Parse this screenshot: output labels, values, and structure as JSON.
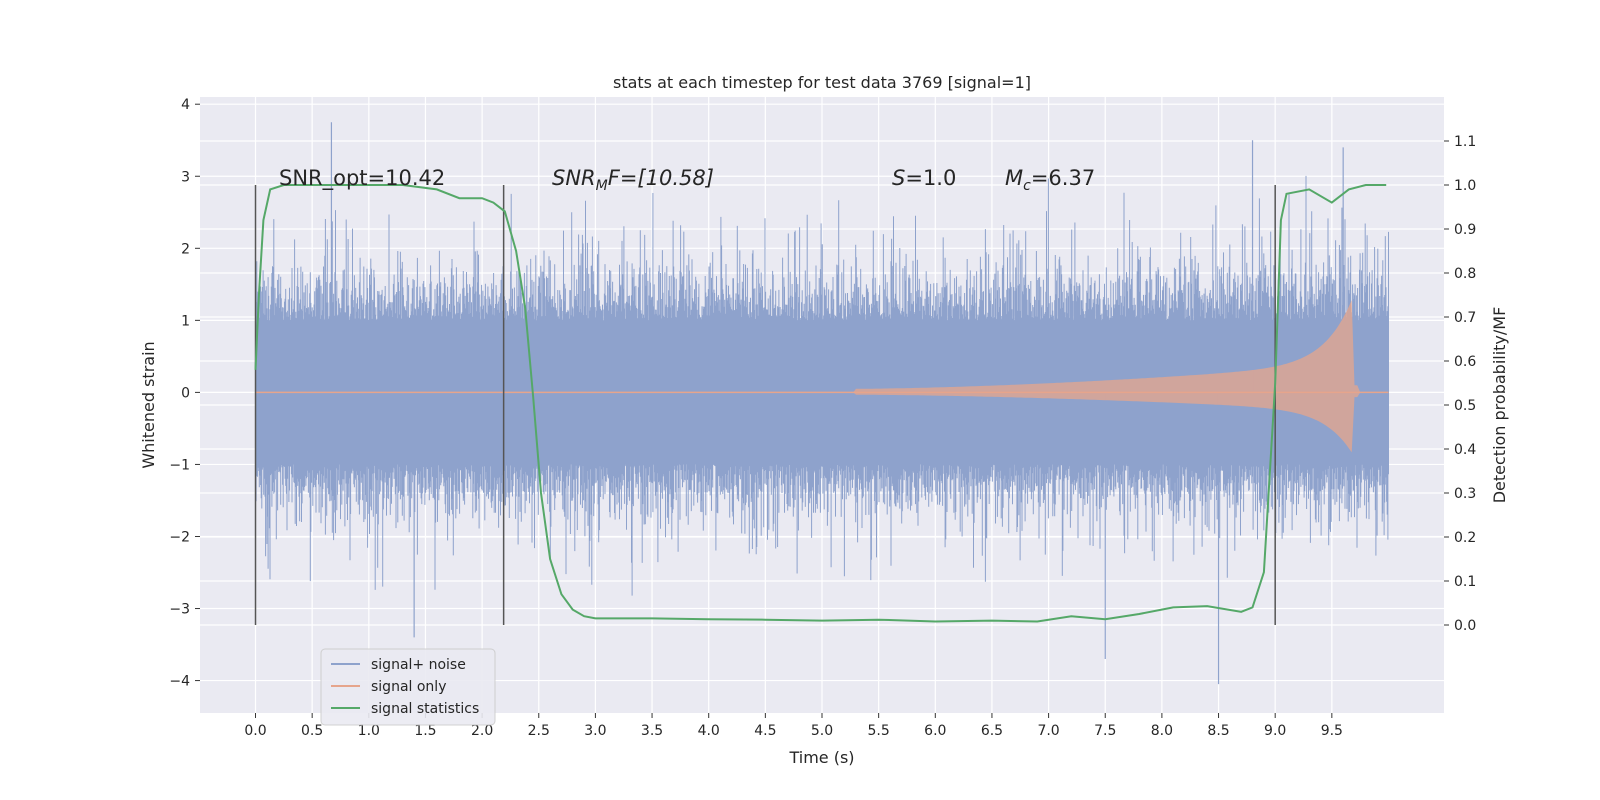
{
  "chart_data": {
    "type": "line",
    "title": "stats at each timestep for test data 3769 [signal=1]",
    "xlabel": "Time (s)",
    "ylabel": "Whitened strain",
    "y2label": "Detection probability/MF",
    "xlim": [
      -0.49,
      10.49
    ],
    "ylim": [
      -4.45,
      4.1
    ],
    "y2lim": [
      -0.2,
      1.2
    ],
    "grid": true,
    "legend_position": "lower-left",
    "x_ticks": [
      "0.0",
      "0.5",
      "1.0",
      "1.5",
      "2.0",
      "2.5",
      "3.0",
      "3.5",
      "4.0",
      "4.5",
      "5.0",
      "5.5",
      "6.0",
      "6.5",
      "7.0",
      "7.5",
      "8.0",
      "8.5",
      "9.0",
      "9.5"
    ],
    "y_ticks": [
      "4",
      "3",
      "2",
      "1",
      "0",
      "−1",
      "−2",
      "−3",
      "−4"
    ],
    "y2_ticks": [
      "1.1",
      "1.0",
      "0.9",
      "0.8",
      "0.7",
      "0.6",
      "0.5",
      "0.4",
      "0.3",
      "0.2",
      "0.1",
      "0.0"
    ],
    "annotations": {
      "snr_opt": "SNR_opt=10.42",
      "snr_mf_main": "SNR",
      "snr_mf_sub": "M",
      "snr_mf_rest": "F=[10.58]",
      "s_label": "S",
      "s_value": "=1.0",
      "mc_label": "M",
      "mc_sub": "c",
      "mc_value": "=6.37"
    },
    "vlines_x": [
      0.0,
      2.19,
      9.0
    ],
    "series": [
      {
        "name": "signal+ noise",
        "color": "#8ea2cc",
        "noise_envelope": {
          "x_start": 0.0,
          "x_end": 10.0,
          "typical_amplitude": 1.3,
          "max": 3.75,
          "min": -4.05
        }
      },
      {
        "name": "signal only",
        "color": "#e6a58c",
        "chirp": {
          "onset": 5.3,
          "merger": 9.68,
          "max_amplitude": 1.35,
          "min_amplitude": -0.85
        }
      },
      {
        "name": "signal statistics",
        "color": "#55a868",
        "points": [
          [
            0.0,
            0.58
          ],
          [
            0.03,
            0.75
          ],
          [
            0.07,
            0.92
          ],
          [
            0.13,
            0.99
          ],
          [
            0.25,
            1.0
          ],
          [
            0.5,
            1.0
          ],
          [
            1.0,
            1.0
          ],
          [
            1.3,
            1.0
          ],
          [
            1.6,
            0.99
          ],
          [
            1.8,
            0.97
          ],
          [
            2.0,
            0.97
          ],
          [
            2.1,
            0.96
          ],
          [
            2.2,
            0.94
          ],
          [
            2.3,
            0.85
          ],
          [
            2.38,
            0.72
          ],
          [
            2.45,
            0.52
          ],
          [
            2.52,
            0.3
          ],
          [
            2.6,
            0.15
          ],
          [
            2.7,
            0.07
          ],
          [
            2.8,
            0.035
          ],
          [
            2.9,
            0.02
          ],
          [
            3.0,
            0.015
          ],
          [
            3.5,
            0.015
          ],
          [
            4.0,
            0.013
          ],
          [
            4.5,
            0.012
          ],
          [
            5.0,
            0.01
          ],
          [
            5.5,
            0.012
          ],
          [
            6.0,
            0.008
          ],
          [
            6.5,
            0.01
          ],
          [
            6.9,
            0.008
          ],
          [
            7.2,
            0.02
          ],
          [
            7.5,
            0.013
          ],
          [
            7.8,
            0.025
          ],
          [
            8.1,
            0.04
          ],
          [
            8.4,
            0.043
          ],
          [
            8.7,
            0.03
          ],
          [
            8.8,
            0.04
          ],
          [
            8.9,
            0.12
          ],
          [
            9.0,
            0.55
          ],
          [
            9.05,
            0.92
          ],
          [
            9.1,
            0.98
          ],
          [
            9.3,
            0.99
          ],
          [
            9.5,
            0.96
          ],
          [
            9.65,
            0.99
          ],
          [
            9.8,
            1.0
          ],
          [
            9.98,
            1.0
          ]
        ]
      }
    ]
  }
}
